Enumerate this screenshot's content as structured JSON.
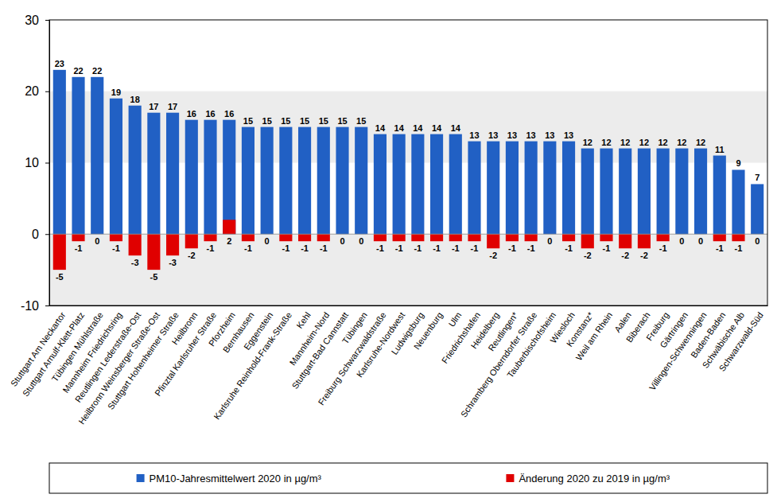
{
  "chart_data": {
    "type": "bar",
    "categories": [
      "Stuttgart Am Neckartor",
      "Stuttgart Arnulf-Klett-Platz",
      "Tübingen Mühlstraße",
      "Mannheim Friedrichsring",
      "Reutlingen Lederstraße-Ost",
      "Heilbronn Weinsberger Straße-Ost",
      "Stuttgart Hohenheimer Straße",
      "Heilbronn",
      "Pfinztal Karlsruher Straße",
      "Pforzheim",
      "Bernhausen",
      "Eggenstein",
      "Karlsruhe Reinhold-Frank-Straße",
      "Kehl",
      "Mannheim-Nord",
      "Stuttgart-Bad Cannstatt",
      "Tübingen",
      "Freiburg Schwarzwaldstraße",
      "Karlsruhe-Nordwest",
      "Ludwigsburg",
      "Neuenburg",
      "Ulm",
      "Friedrichshafen",
      "Heidelberg",
      "Reutlingen*",
      "Schramberg Oberndorfer Straße",
      "Tauberbischofsheim",
      "Wiesloch",
      "Konstanz*",
      "Weil am Rhein",
      "Aalen",
      "Biberach",
      "Freiburg",
      "Gärtringen",
      "Villingen-Schwenningen",
      "Baden-Baden",
      "Schwäbische Alb",
      "Schwarzwald-Süd"
    ],
    "series": [
      {
        "name": "PM10-Jahresmittelwert 2020 in µg/m³",
        "color": "#2160c4",
        "values": [
          23,
          22,
          22,
          19,
          18,
          17,
          17,
          16,
          16,
          16,
          15,
          15,
          15,
          15,
          15,
          15,
          15,
          14,
          14,
          14,
          14,
          14,
          13,
          13,
          13,
          13,
          13,
          13,
          12,
          12,
          12,
          12,
          12,
          12,
          12,
          11,
          9,
          7
        ]
      },
      {
        "name": "Änderung 2020 zu 2019 in µg/m³",
        "color": "#e00000",
        "values": [
          -5,
          -1,
          0,
          -1,
          -3,
          -5,
          -3,
          -2,
          -1,
          2,
          -1,
          0,
          -1,
          -1,
          -1,
          0,
          0,
          -1,
          -1,
          -1,
          -1,
          -1,
          -1,
          -2,
          -1,
          -1,
          0,
          -1,
          -2,
          -1,
          -2,
          -2,
          -1,
          0,
          0,
          -1,
          -1,
          0
        ]
      }
    ],
    "ylim": [
      -10,
      30
    ],
    "yticks": [
      -10,
      0,
      10,
      20,
      30
    ],
    "grid": true,
    "legend": "bottom",
    "data_labels": true
  }
}
